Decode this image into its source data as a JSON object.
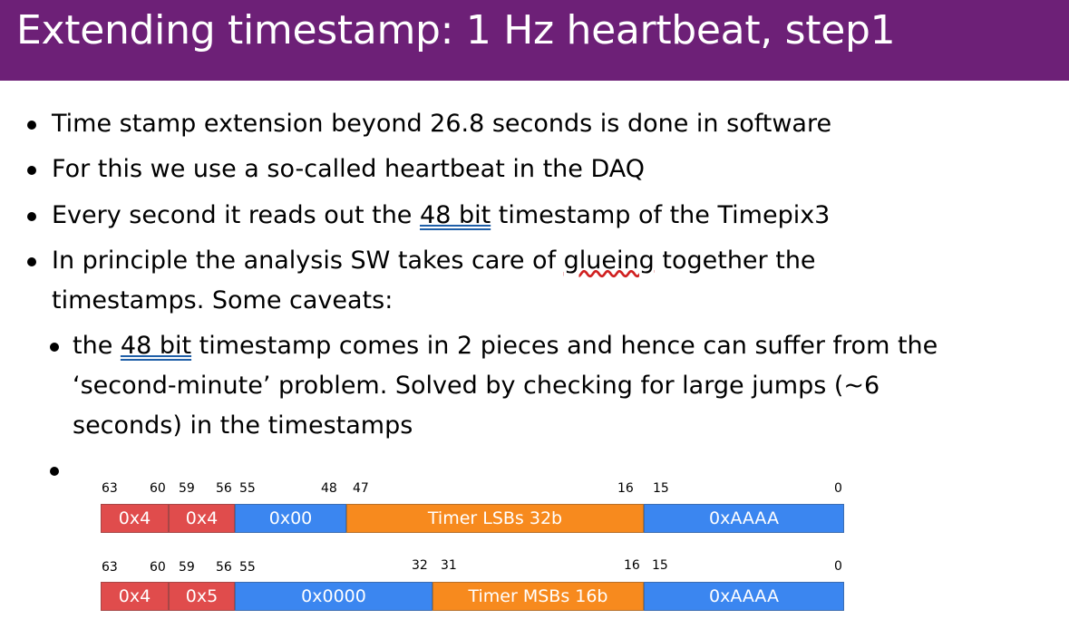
{
  "title": "Extending timestamp: 1 Hz heartbeat, step1",
  "bullets": {
    "b1": "Time stamp extension beyond 26.8 seconds is done in software",
    "b2": "For this we use a  so-called heartbeat in the DAQ",
    "b3_pre": "Every second it reads out the ",
    "b3_link": "48 bit",
    "b3_post": " timestamp of the Timepix3",
    "b4_line1_pre": "In principle the analysis SW takes care of ",
    "b4_spell": "glueing",
    "b4_line1_post": " together the",
    "b4_line2": "timestamps. Some caveats:",
    "sub1_line1_pre": "the ",
    "sub1_link": "48 bit",
    "sub1_line1_post": " timestamp comes in 2 pieces and hence can suffer from the",
    "sub1_line2": "‘second-minute’ problem. Solved by checking for large jumps (~6",
    "sub1_line3": "seconds) in the timestamps"
  },
  "frame1": {
    "bit_labels": [
      "63",
      "60",
      "59",
      "56",
      "55",
      "48",
      "47",
      "16",
      "15",
      "0"
    ],
    "fields": [
      "0x4",
      "0x4",
      "0x00",
      "Timer LSBs 32b",
      "0xAAAA"
    ]
  },
  "frame2": {
    "bit_labels": [
      "63",
      "60",
      "59",
      "56",
      "55",
      "32",
      "31",
      "16",
      "15",
      "0"
    ],
    "fields": [
      "0x4",
      "0x5",
      "0x0000",
      "Timer MSBs 16b",
      "0xAAAA"
    ]
  },
  "colors": {
    "title_bar": "#6d2077",
    "header_field": "#e04c4c",
    "fixed_field": "#3b86f0",
    "timer_field": "#f78a1e"
  }
}
